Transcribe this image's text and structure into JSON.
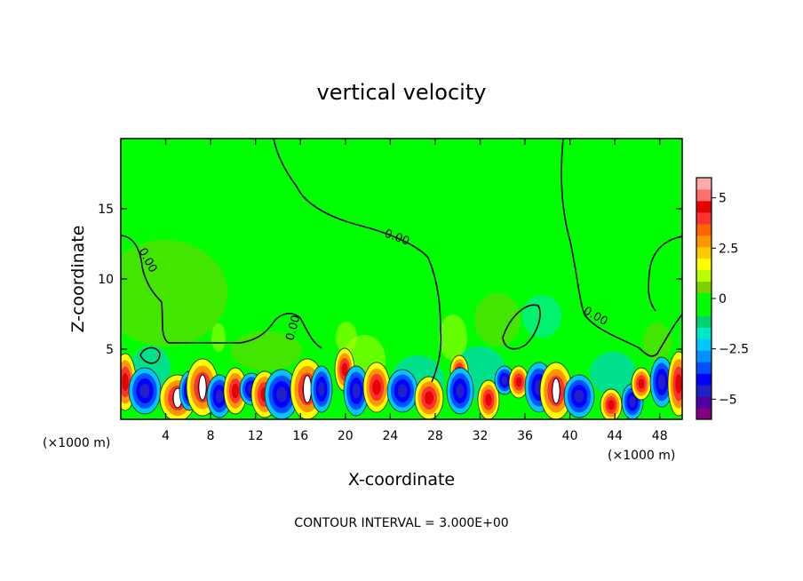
{
  "chart_data": {
    "type": "heatmap",
    "title": "vertical velocity",
    "xlabel": "X-coordinate",
    "ylabel": "Z-coordinate",
    "x_units": "(×1000 m)",
    "x_units_right": "(×1000 m)",
    "xlim": [
      0,
      50
    ],
    "ylim": [
      0,
      20
    ],
    "x_ticks": [
      4,
      8,
      12,
      16,
      20,
      24,
      28,
      32,
      36,
      40,
      44,
      48
    ],
    "y_ticks": [
      5,
      10,
      15
    ],
    "contour_interval_text": "CONTOUR INTERVAL = 3.000E+00",
    "contour_labels": [
      "0.00",
      "0.00",
      "0.00",
      "0.00"
    ],
    "colorbar": {
      "range": [
        -6,
        6
      ],
      "ticks": [
        5,
        2.5,
        0,
        -2.5,
        -5
      ],
      "tick_labels": [
        "5",
        "2.5",
        "0",
        "−2.5",
        "−5"
      ],
      "colors": [
        "#800080",
        "#5000a0",
        "#2020c8",
        "#0000ff",
        "#0050ff",
        "#0090ff",
        "#00c8ff",
        "#00e8c8",
        "#00d26e",
        "#00ff00",
        "#00ff00",
        "#7ad200",
        "#b8ff00",
        "#ffff00",
        "#ffc800",
        "#ff9600",
        "#ff6400",
        "#ff3232",
        "#e60000",
        "#ff6e6e",
        "#ffaaaa"
      ]
    },
    "grid": false,
    "legend": "right"
  }
}
